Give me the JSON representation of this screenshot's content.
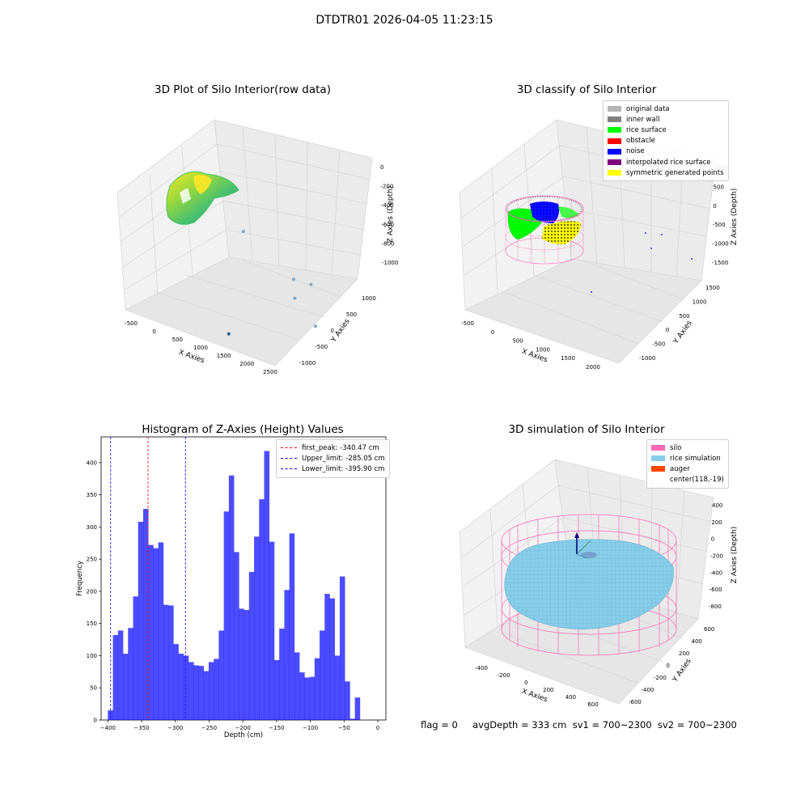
{
  "suptitle": "DTDTR01 2026-04-05 11:23:15",
  "status_line": "flag = 0     avgDepth = 333 cm  sv1 = 700~2300  sv2 = 700~2300",
  "chart_data": [
    {
      "type": "scatter",
      "projection": "3d",
      "title": "3D Plot of Silo Interior(row data)",
      "xlabel": "X Axies",
      "ylabel": "Y Axies",
      "zlabel": "Z Axies (Depth)",
      "x_ticks": [
        "-500",
        "0",
        "500",
        "1000",
        "1500",
        "2000",
        "2500"
      ],
      "y_ticks": [
        "-1000",
        "-500",
        "0",
        "500",
        "1000"
      ],
      "z_ticks": [
        "0",
        "-200",
        "-400",
        "-600",
        "-800",
        "-1000"
      ],
      "xlim": [
        -600,
        2600
      ],
      "ylim": [
        -1100,
        1150
      ],
      "zlim": [
        -1150,
        50
      ],
      "colormap": "viridis",
      "outliers": [
        {
          "x": 1900,
          "y": 600,
          "z": -500
        },
        {
          "x": 2150,
          "y": 800,
          "z": -560
        },
        {
          "x": 2000,
          "y": 500,
          "z": -700
        },
        {
          "x": 2400,
          "y": 600,
          "z": -1000
        },
        {
          "x": 1600,
          "y": -1000,
          "z": -900
        },
        {
          "x": 600,
          "y": 800,
          "z": -200
        }
      ]
    },
    {
      "type": "scatter",
      "projection": "3d",
      "title": "3D classify of Silo Interior",
      "xlabel": "X Axies",
      "ylabel": "Y Axies",
      "zlabel": "Z Axies (Depth)",
      "x_ticks": [
        "-500",
        "0",
        "500",
        "1000",
        "1500",
        "2000"
      ],
      "y_ticks": [
        "-1000",
        "-500",
        "0",
        "500",
        "1000",
        "1500"
      ],
      "z_ticks": [
        "1000",
        "500",
        "0",
        "-500",
        "-1000",
        "-1500"
      ],
      "legend": [
        {
          "label": "original data",
          "color": "#b4b4b4"
        },
        {
          "label": "inner wall",
          "color": "#808080"
        },
        {
          "label": "rice surface",
          "color": "#00ff00"
        },
        {
          "label": "obstacle",
          "color": "#ff0000"
        },
        {
          "label": "noise",
          "color": "#0000ff"
        },
        {
          "label": "interpolated rice surface",
          "color": "#800080"
        },
        {
          "label": "symmetric generated points",
          "color": "#ffff00"
        }
      ],
      "legend_loc": "upper right"
    },
    {
      "type": "bar",
      "title": "Histogram of Z-Axies (Height) Values",
      "xlabel": "Depth (cm)",
      "ylabel": "Frequency",
      "xlim": [
        -410,
        12
      ],
      "ylim": [
        0,
        440
      ],
      "x_ticks": [
        -400,
        -350,
        -300,
        -250,
        -200,
        -150,
        -100,
        -50,
        0
      ],
      "y_ticks": [
        0,
        50,
        100,
        150,
        200,
        250,
        300,
        350,
        400
      ],
      "bar_color": "#0000ff",
      "bar_alpha": 0.7,
      "bins_start": -400,
      "bin_width": 7.47,
      "values": [
        15,
        132,
        139,
        103,
        143,
        192,
        308,
        328,
        272,
        267,
        276,
        179,
        178,
        118,
        103,
        100,
        90,
        85,
        84,
        76,
        90,
        95,
        139,
        324,
        380,
        261,
        173,
        171,
        230,
        285,
        343,
        418,
        277,
        93,
        142,
        202,
        290,
        105,
        74,
        66,
        67,
        96,
        139,
        196,
        189,
        100,
        223,
        60,
        2,
        35
      ],
      "vlines": [
        {
          "label": "first_peak: -340.47 cm",
          "x": -340.47,
          "color": "#ff0000"
        },
        {
          "label": "Upper_limit: -285.05 cm",
          "x": -285.05,
          "color": "#0000ff"
        },
        {
          "label": "Lower_limit: -395.90 cm",
          "x": -395.9,
          "color": "#0000ff"
        }
      ],
      "legend_loc": "upper right"
    },
    {
      "type": "surface",
      "projection": "3d",
      "title": "3D simulation of Silo Interior",
      "xlabel": "X Axies",
      "ylabel": "Y Axies",
      "zlabel": "Z Axies (Depth)",
      "x_ticks": [
        "-400",
        "-200",
        "0",
        "200",
        "400",
        "600"
      ],
      "y_ticks": [
        "-600",
        "-400",
        "-200",
        "0",
        "200",
        "400",
        "600"
      ],
      "z_ticks": [
        "400",
        "200",
        "0",
        "-200",
        "-400",
        "-600",
        "-800"
      ],
      "legend": [
        {
          "label": "silo",
          "color": "#ff69b4"
        },
        {
          "label": "rice simulation",
          "color": "#87ceeb"
        },
        {
          "label": "auger",
          "color": "#ff4500"
        },
        {
          "label": "center(118,-19)",
          "color": ""
        }
      ],
      "legend_loc": "upper right"
    }
  ]
}
